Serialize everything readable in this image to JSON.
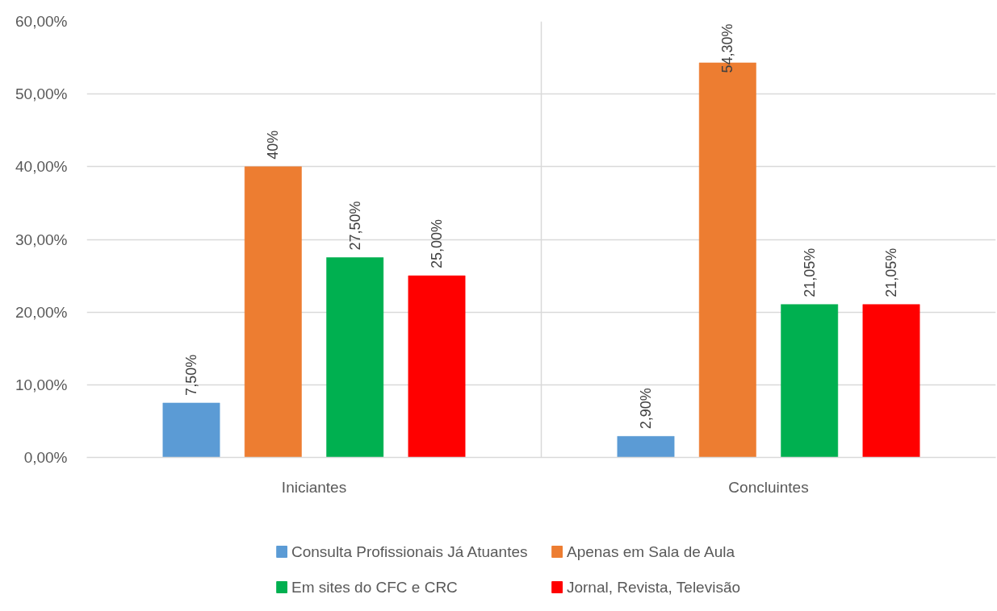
{
  "chart_data": {
    "type": "bar",
    "categories": [
      "Iniciantes",
      "Concluintes"
    ],
    "series": [
      {
        "name": "Consulta Profissionais Já Atuantes",
        "color": "#5b9bd5",
        "values": [
          7.5,
          2.9
        ],
        "value_labels": [
          "7,50%",
          "2,90%"
        ]
      },
      {
        "name": "Apenas em Sala de Aula",
        "color": "#ed7d31",
        "values": [
          40,
          54.3
        ],
        "value_labels": [
          "40%",
          "54,30%"
        ]
      },
      {
        "name": "Em sites do CFC e CRC",
        "color": "#00b050",
        "values": [
          27.5,
          21.05
        ],
        "value_labels": [
          "27,50%",
          "21,05%"
        ]
      },
      {
        "name": "Jornal, Revista, Televisão",
        "color": "#ff0000",
        "values": [
          25,
          21.05
        ],
        "value_labels": [
          "25,00%",
          "21,05%"
        ]
      }
    ],
    "ylim": [
      0,
      60
    ],
    "yticks": [
      {
        "value": 0,
        "label": "0,00%"
      },
      {
        "value": 10,
        "label": "10,00%"
      },
      {
        "value": 20,
        "label": "20,00%"
      },
      {
        "value": 30,
        "label": "30,00%"
      },
      {
        "value": 40,
        "label": "40,00%"
      },
      {
        "value": 50,
        "label": "50,00%"
      },
      {
        "value": 60,
        "label": "60,00%"
      }
    ],
    "grid": true,
    "legend": "bottom"
  }
}
